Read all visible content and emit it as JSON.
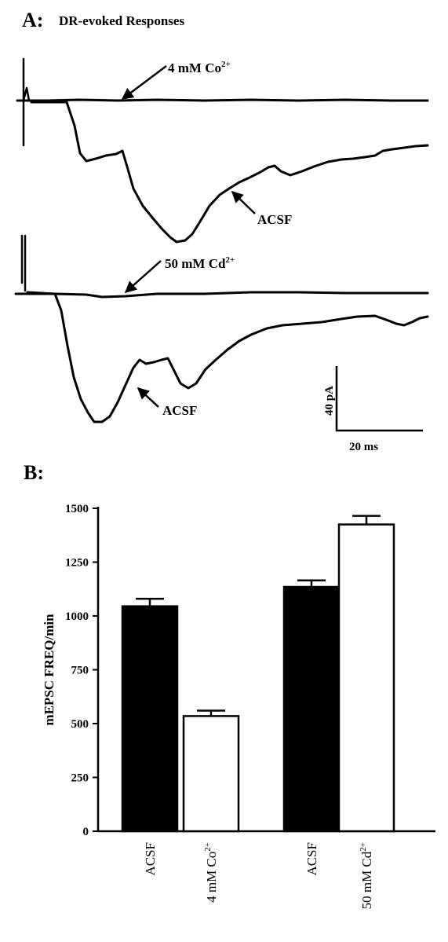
{
  "panel_a": {
    "label": "A:",
    "title": "DR-evoked Responses",
    "labels": {
      "co": "4 mM Co",
      "co_sup": "2+",
      "acsf_top": "ACSF",
      "cd": "50 mM Cd",
      "cd_sup": "2+",
      "acsf_bottom": "ACSF"
    },
    "scale_bar": {
      "amplitude": "40 pA",
      "time": "20 ms"
    }
  },
  "panel_b": {
    "label": "B:"
  },
  "chart_data": {
    "type": "bar",
    "ylabel": "mEPSC FREQ/min",
    "ylim": [
      0,
      1500
    ],
    "yticks": [
      0,
      250,
      500,
      750,
      1000,
      1250,
      1500
    ],
    "grid": false,
    "bars": [
      {
        "label": "ACSF",
        "value": 1045,
        "error": 35,
        "fill": "#000000"
      },
      {
        "label": "4 mM Co2+",
        "value": 535,
        "error": 25,
        "fill": "#ffffff"
      },
      {
        "label": "ACSF",
        "value": 1135,
        "error": 30,
        "fill": "#000000"
      },
      {
        "label": "50 mM Cd2+",
        "value": 1425,
        "error": 40,
        "fill": "#ffffff"
      }
    ]
  }
}
